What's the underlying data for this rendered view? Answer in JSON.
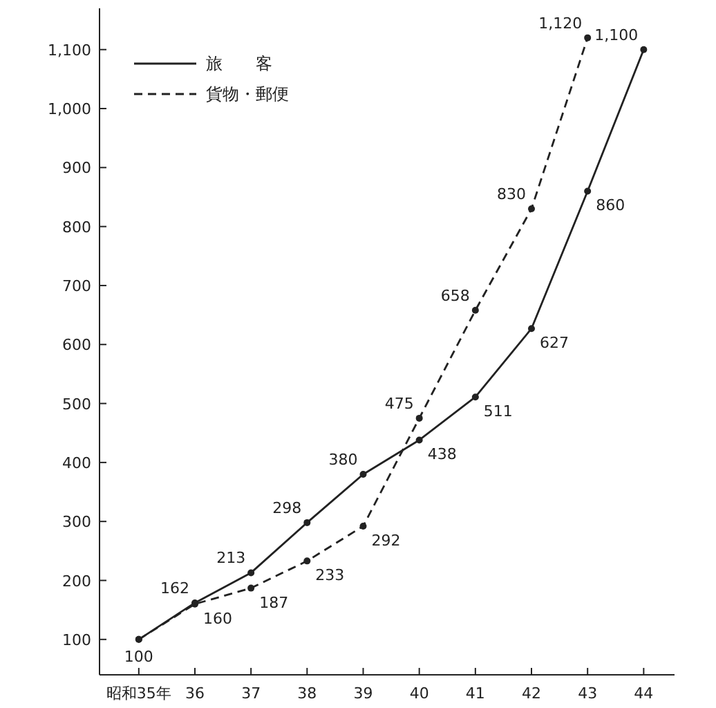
{
  "chart_data": {
    "type": "line",
    "categories": [
      "昭和35年",
      "36",
      "37",
      "38",
      "39",
      "40",
      "41",
      "42",
      "43",
      "44"
    ],
    "series": [
      {
        "name": "旅　　客",
        "color": "#222222",
        "line_style": "solid",
        "values": [
          100,
          162,
          213,
          298,
          380,
          438,
          511,
          627,
          860,
          1100
        ],
        "value_labels": [
          "100",
          "162",
          "213",
          "298",
          "380",
          "438",
          "511",
          "627",
          "860",
          "1,100"
        ]
      },
      {
        "name": "貨物・郵便",
        "color": "#222222",
        "line_style": "dashed",
        "values": [
          100,
          160,
          187,
          233,
          292,
          475,
          658,
          830,
          1120,
          null
        ],
        "value_labels": [
          null,
          "160",
          "187",
          "233",
          "292",
          "475",
          "658",
          "830",
          "1,120",
          null
        ]
      }
    ],
    "ylim": [
      40,
      1170
    ],
    "yticks": [
      100,
      200,
      300,
      400,
      500,
      600,
      700,
      800,
      900,
      {
        "value": 1000,
        "label": "1,000"
      },
      {
        "value": 1100,
        "label": "1,100"
      }
    ],
    "marker": "circle",
    "legend": "top left"
  }
}
